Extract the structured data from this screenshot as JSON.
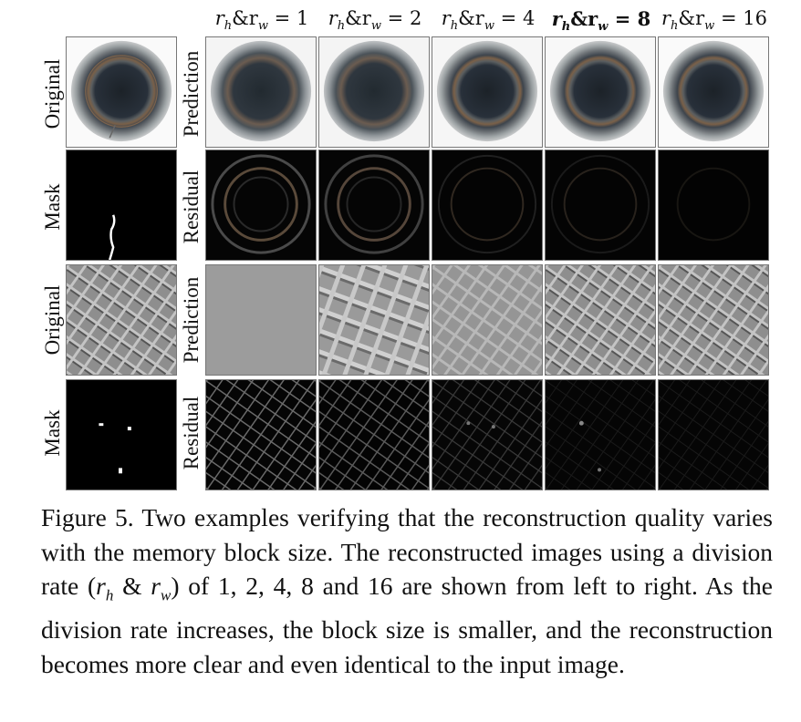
{
  "column_headers": [
    {
      "prefix": "r",
      "sub1": "h",
      "mid": "&r",
      "sub2": "w",
      "eq": " = ",
      "value": "1",
      "bold": false
    },
    {
      "prefix": "r",
      "sub1": "h",
      "mid": "&r",
      "sub2": "w",
      "eq": " = ",
      "value": "2",
      "bold": false
    },
    {
      "prefix": "r",
      "sub1": "h",
      "mid": "&r",
      "sub2": "w",
      "eq": " = ",
      "value": "4",
      "bold": false
    },
    {
      "prefix": "r",
      "sub1": "h",
      "mid": "&r",
      "sub2": "w",
      "eq": " = ",
      "value": "8",
      "bold": true
    },
    {
      "prefix": "r",
      "sub1": "h",
      "mid": "&r",
      "sub2": "w",
      "eq": " = ",
      "value": "16",
      "bold": false
    }
  ],
  "rows": [
    {
      "left_label": "Original",
      "right_label": "Prediction"
    },
    {
      "left_label": "Mask",
      "right_label": "Residual"
    },
    {
      "left_label": "Original",
      "right_label": "Prediction"
    },
    {
      "left_label": "Mask",
      "right_label": "Residual"
    }
  ],
  "caption": {
    "part1": "Figure 5. Two examples verifying that the reconstruction quality varies with the memory block size.  The reconstructed images using a division rate (",
    "r": "r",
    "h": "h",
    "amp": " & ",
    "w": "w",
    "part2": ") of 1, 2, 4, 8 and 16 are shown from left to right.  As the division rate increases, the block size is smaller, and the reconstruction becomes more clear and even identical to the input image."
  }
}
